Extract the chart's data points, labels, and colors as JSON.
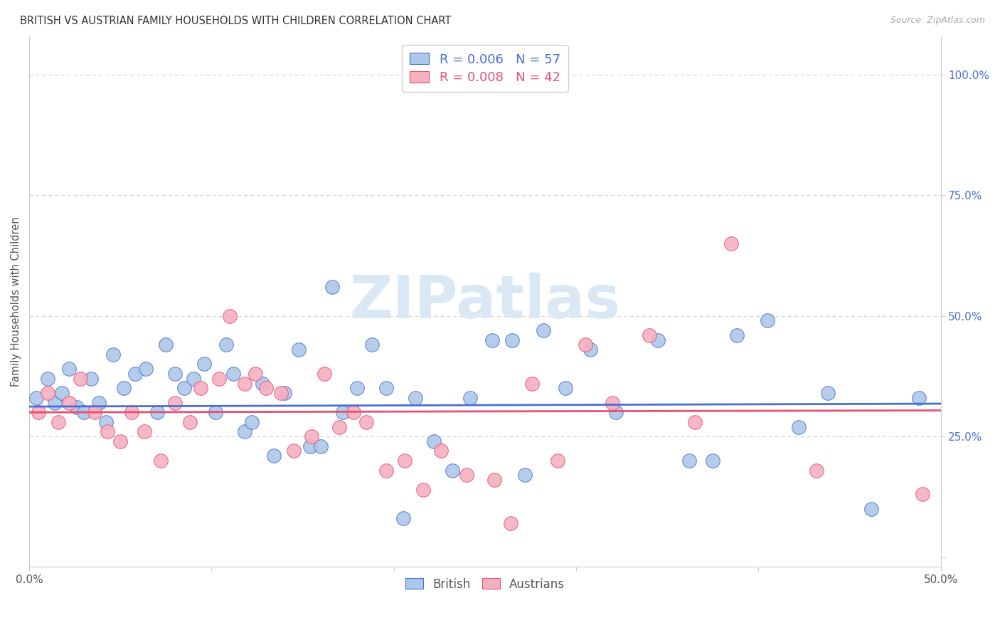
{
  "title": "BRITISH VS AUSTRIAN FAMILY HOUSEHOLDS WITH CHILDREN CORRELATION CHART",
  "source": "Source: ZipAtlas.com",
  "xlabel": "",
  "ylabel": "Family Households with Children",
  "xlim": [
    0.0,
    0.5
  ],
  "ylim": [
    -0.02,
    1.08
  ],
  "xticks": [
    0.0,
    0.1,
    0.2,
    0.3,
    0.4,
    0.5
  ],
  "xticklabels": [
    "0.0%",
    "",
    "",
    "",
    "",
    "50.0%"
  ],
  "yticks_right": [
    0.0,
    0.25,
    0.5,
    0.75,
    1.0
  ],
  "yticklabels_right": [
    "",
    "25.0%",
    "50.0%",
    "75.0%",
    "100.0%"
  ],
  "grid_color": "#cccccc",
  "background_color": "#ffffff",
  "british_color": "#adc8e8",
  "austrian_color": "#f5b0c0",
  "british_line_color": "#4a6fd4",
  "austrian_line_color": "#e85070",
  "watermark_text": "ZIPatlas",
  "watermark_color": "#dae8f5",
  "british_x": [
    0.004,
    0.01,
    0.014,
    0.018,
    0.022,
    0.026,
    0.03,
    0.034,
    0.038,
    0.042,
    0.046,
    0.052,
    0.058,
    0.064,
    0.07,
    0.075,
    0.08,
    0.085,
    0.09,
    0.096,
    0.102,
    0.108,
    0.112,
    0.118,
    0.122,
    0.128,
    0.134,
    0.14,
    0.148,
    0.154,
    0.16,
    0.166,
    0.172,
    0.18,
    0.188,
    0.196,
    0.205,
    0.212,
    0.222,
    0.232,
    0.242,
    0.254,
    0.265,
    0.272,
    0.282,
    0.294,
    0.308,
    0.322,
    0.345,
    0.362,
    0.375,
    0.388,
    0.405,
    0.422,
    0.438,
    0.462,
    0.488
  ],
  "british_y": [
    0.33,
    0.37,
    0.32,
    0.34,
    0.39,
    0.31,
    0.3,
    0.37,
    0.32,
    0.28,
    0.42,
    0.35,
    0.38,
    0.39,
    0.3,
    0.44,
    0.38,
    0.35,
    0.37,
    0.4,
    0.3,
    0.44,
    0.38,
    0.26,
    0.28,
    0.36,
    0.21,
    0.34,
    0.43,
    0.23,
    0.23,
    0.56,
    0.3,
    0.35,
    0.44,
    0.35,
    0.08,
    0.33,
    0.24,
    0.18,
    0.33,
    0.45,
    0.45,
    0.17,
    0.47,
    0.35,
    0.43,
    0.3,
    0.45,
    0.2,
    0.2,
    0.46,
    0.49,
    0.27,
    0.34,
    0.1,
    0.33
  ],
  "austrian_x": [
    0.005,
    0.01,
    0.016,
    0.022,
    0.028,
    0.036,
    0.043,
    0.05,
    0.056,
    0.063,
    0.072,
    0.08,
    0.088,
    0.094,
    0.104,
    0.11,
    0.118,
    0.124,
    0.13,
    0.138,
    0.145,
    0.155,
    0.162,
    0.17,
    0.178,
    0.185,
    0.196,
    0.206,
    0.216,
    0.226,
    0.24,
    0.255,
    0.264,
    0.276,
    0.29,
    0.305,
    0.32,
    0.34,
    0.365,
    0.385,
    0.432,
    0.49
  ],
  "austrian_y": [
    0.3,
    0.34,
    0.28,
    0.32,
    0.37,
    0.3,
    0.26,
    0.24,
    0.3,
    0.26,
    0.2,
    0.32,
    0.28,
    0.35,
    0.37,
    0.5,
    0.36,
    0.38,
    0.35,
    0.34,
    0.22,
    0.25,
    0.38,
    0.27,
    0.3,
    0.28,
    0.18,
    0.2,
    0.14,
    0.22,
    0.17,
    0.16,
    0.07,
    0.36,
    0.2,
    0.44,
    0.32,
    0.46,
    0.28,
    0.65,
    0.18,
    0.13
  ],
  "british_trend_x0": 0.0,
  "british_trend_x1": 0.5,
  "british_trend_y0": 0.312,
  "british_trend_y1": 0.318,
  "austrian_trend_x0": 0.0,
  "austrian_trend_x1": 0.5,
  "austrian_trend_y0": 0.3,
  "austrian_trend_y1": 0.304
}
